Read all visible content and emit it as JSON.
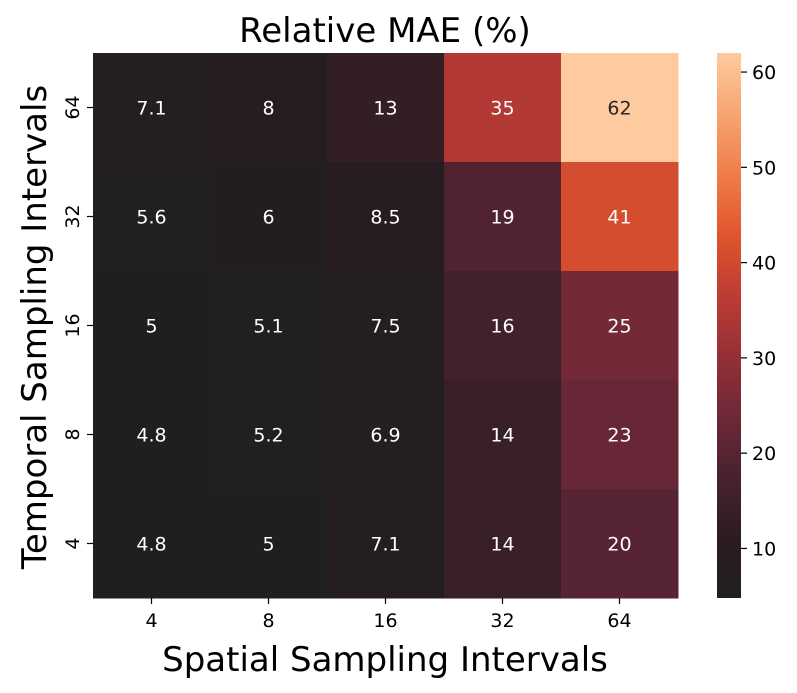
{
  "chart_data": {
    "type": "heatmap",
    "title": "Relative MAE (%)",
    "xlabel": "Spatial Sampling Intervals",
    "ylabel": "Temporal Sampling Intervals",
    "x_categories": [
      "4",
      "8",
      "16",
      "32",
      "64"
    ],
    "y_categories": [
      "64",
      "32",
      "16",
      "8",
      "4"
    ],
    "values": [
      [
        7.1,
        8,
        13,
        35,
        62
      ],
      [
        5.6,
        6,
        8.5,
        19,
        41
      ],
      [
        5,
        5.1,
        7.5,
        16,
        25
      ],
      [
        4.8,
        5.2,
        6.9,
        14,
        23
      ],
      [
        4.8,
        5,
        7.1,
        14,
        20
      ]
    ],
    "cell_labels": [
      [
        "7.1",
        "8",
        "13",
        "35",
        "62"
      ],
      [
        "5.6",
        "6",
        "8.5",
        "19",
        "41"
      ],
      [
        "5",
        "5.1",
        "7.5",
        "16",
        "25"
      ],
      [
        "4.8",
        "5.2",
        "6.9",
        "14",
        "23"
      ],
      [
        "4.8",
        "5",
        "7.1",
        "14",
        "20"
      ]
    ],
    "colorbar": {
      "range": [
        4.8,
        62
      ],
      "ticks": [
        10,
        20,
        30,
        40,
        50,
        60
      ],
      "tick_labels": [
        "10",
        "20",
        "30",
        "40",
        "50",
        "60"
      ],
      "colormap": "rocket",
      "stops": [
        "#201f1f",
        "#2c1c22",
        "#48222f",
        "#6d2837",
        "#953036",
        "#bd3c33",
        "#e0552d",
        "#f07d49",
        "#f7a571",
        "#fdcb9f"
      ]
    }
  }
}
